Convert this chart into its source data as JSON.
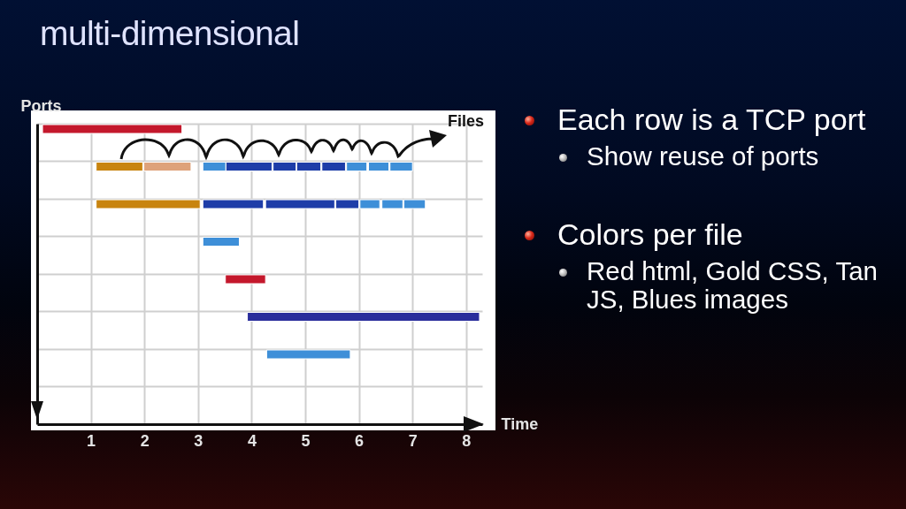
{
  "chart_data": {
    "type": "bar",
    "orientation": "horizontal",
    "title": "multi-dimensional",
    "xlabel": "Time",
    "ylabel": "Ports",
    "categories": [
      null,
      null,
      null,
      null,
      null,
      null,
      null,
      null
    ],
    "xlim": [
      0,
      8.3
    ],
    "xticks": [
      1,
      2,
      3,
      4,
      5,
      6,
      7,
      8
    ],
    "grid": true,
    "tick_labels": "x",
    "annotations": [
      "Files",
      "Each row is a TCP port",
      "Show reuse of ports",
      "Colors per file",
      "Red html, Gold CSS, Tan JS, Blues images"
    ],
    "series": [
      {
        "values": [
          2.6,
          0.87,
          1.94,
          0.68,
          0.75,
          4.33,
          1.56,
          null
        ],
        "base": [
          0.1,
          1.1,
          1.1,
          3.09,
          3.51,
          3.92,
          4.28,
          null
        ],
        "colors": [
          "#c4182c",
          "#c8840f",
          "#c8840f",
          "#3e8fd8",
          "#c4182c",
          "#2a2e9c",
          "#3e8fd8",
          null
        ]
      },
      {
        "values": [
          null,
          0.88,
          1.13,
          null,
          null,
          null,
          null,
          null
        ],
        "base": [
          null,
          1.99,
          3.09,
          null,
          null,
          null,
          null,
          null
        ],
        "colors": [
          null,
          "#dea27a",
          "#1e3da8",
          null,
          null,
          null,
          null,
          null
        ]
      },
      {
        "values": [
          null,
          0.43,
          1.29,
          null,
          null,
          null,
          null,
          null
        ],
        "base": [
          null,
          3.09,
          4.26,
          null,
          null,
          null,
          null,
          null
        ],
        "colors": [
          null,
          "#3e8fd8",
          "#1e3da8",
          null,
          null,
          null,
          null,
          null
        ]
      },
      {
        "values": [
          null,
          0.86,
          0.43,
          null,
          null,
          null,
          null,
          null
        ],
        "base": [
          null,
          3.52,
          5.57,
          null,
          null,
          null,
          null,
          null
        ],
        "colors": [
          null,
          "#1e3da8",
          "#1e3da8",
          null,
          null,
          null,
          null,
          null
        ]
      },
      {
        "values": [
          null,
          0.43,
          0.37,
          null,
          null,
          null,
          null,
          null
        ],
        "base": [
          null,
          4.4,
          6.02,
          null,
          null,
          null,
          null,
          null
        ],
        "colors": [
          null,
          "#1e3da8",
          "#3e8fd8",
          null,
          null,
          null,
          null,
          null
        ]
      },
      {
        "values": [
          null,
          0.45,
          0.39,
          null,
          null,
          null,
          null,
          null
        ],
        "base": [
          null,
          4.84,
          6.43,
          null,
          null,
          null,
          null,
          null
        ],
        "colors": [
          null,
          "#1e3da8",
          "#3e8fd8",
          null,
          null,
          null,
          null,
          null
        ]
      },
      {
        "values": [
          null,
          0.44,
          0.4,
          null,
          null,
          null,
          null,
          null
        ],
        "base": [
          null,
          5.31,
          6.84,
          null,
          null,
          null,
          null,
          null
        ],
        "colors": [
          null,
          "#1e3da8",
          "#3e8fd8",
          null,
          null,
          null,
          null,
          null
        ]
      },
      {
        "values": [
          null,
          0.38,
          null,
          null,
          null,
          null,
          null,
          null
        ],
        "base": [
          null,
          5.77,
          null,
          null,
          null,
          null,
          null,
          null
        ],
        "colors": [
          null,
          "#3e8fd8",
          null,
          null,
          null,
          null,
          null,
          null
        ]
      },
      {
        "values": [
          null,
          0.38,
          null,
          null,
          null,
          null,
          null,
          null
        ],
        "base": [
          null,
          6.18,
          null,
          null,
          null,
          null,
          null,
          null
        ],
        "colors": [
          null,
          "#3e8fd8",
          null,
          null,
          null,
          null,
          null,
          null
        ]
      },
      {
        "values": [
          null,
          0.42,
          null,
          null,
          null,
          null,
          null,
          null
        ],
        "base": [
          null,
          6.58,
          null,
          null,
          null,
          null,
          null,
          null
        ],
        "colors": [
          null,
          "#3e8fd8",
          null,
          null,
          null,
          null,
          null,
          null
        ]
      }
    ]
  }
}
